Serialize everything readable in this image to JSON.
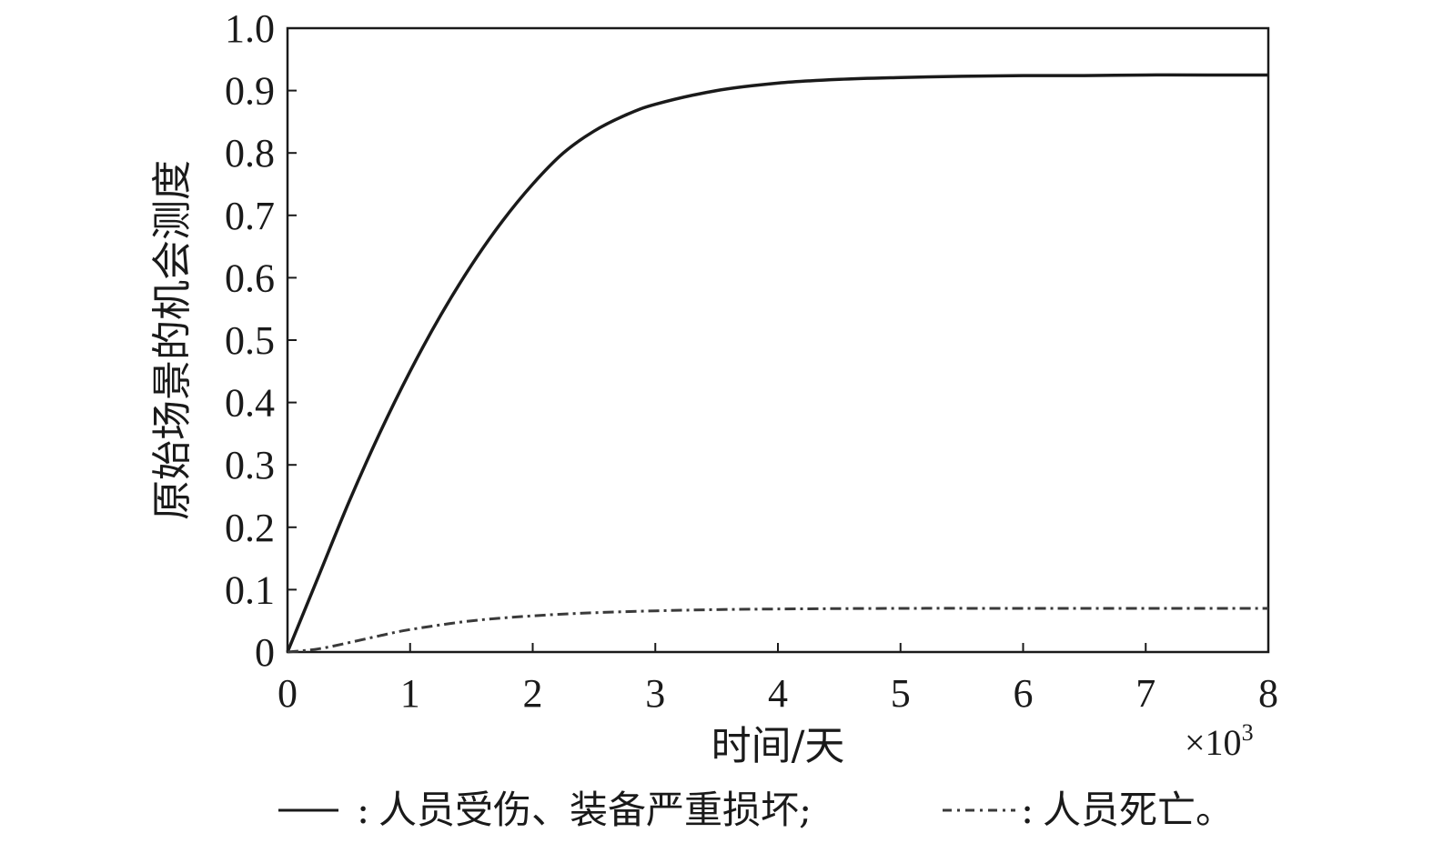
{
  "chart_data": {
    "type": "line",
    "xlabel": "时间/天",
    "ylabel": "原始场景的机会测度",
    "x_multiplier": "×10",
    "x_multiplier_exp": "3",
    "xlim": [
      0,
      8
    ],
    "ylim": [
      0,
      1.0
    ],
    "x_ticks": [
      "0",
      "1",
      "2",
      "3",
      "4",
      "5",
      "6",
      "7",
      "8"
    ],
    "y_ticks": [
      "0",
      "0.1",
      "0.2",
      "0.3",
      "0.4",
      "0.5",
      "0.6",
      "0.7",
      "0.8",
      "0.9",
      "1.0"
    ],
    "series": [
      {
        "name": "人员受伤、装备严重损坏",
        "style": "solid",
        "color": "#1a1a1a",
        "x": [
          0,
          0.25,
          0.5,
          0.75,
          1.0,
          1.25,
          1.5,
          1.75,
          2.0,
          2.25,
          2.5,
          2.75,
          3.0,
          3.5,
          4.0,
          4.5,
          5.0,
          5.5,
          6.0,
          6.5,
          7.0,
          7.5,
          8.0
        ],
        "y": [
          0,
          0.12,
          0.24,
          0.35,
          0.45,
          0.54,
          0.62,
          0.69,
          0.75,
          0.8,
          0.835,
          0.86,
          0.878,
          0.9,
          0.912,
          0.918,
          0.921,
          0.923,
          0.924,
          0.924,
          0.925,
          0.925,
          0.925
        ]
      },
      {
        "name": "人员死亡",
        "style": "dashdot",
        "color": "#3a3a3a",
        "x": [
          0,
          0.25,
          0.5,
          0.75,
          1.0,
          1.5,
          2.0,
          2.5,
          3.0,
          3.5,
          4.0,
          5.0,
          6.0,
          7.0,
          8.0
        ],
        "y": [
          0,
          0.005,
          0.015,
          0.026,
          0.036,
          0.05,
          0.058,
          0.063,
          0.066,
          0.068,
          0.069,
          0.07,
          0.07,
          0.07,
          0.07
        ]
      }
    ],
    "legend": {
      "position": "bottom",
      "entries": [
        {
          "symbol": "——",
          "sep": ":",
          "label": "人员受伤、装备严重损坏;"
        },
        {
          "symbol": "- · - -",
          "sep": ":",
          "label": "人员死亡。"
        }
      ]
    }
  }
}
